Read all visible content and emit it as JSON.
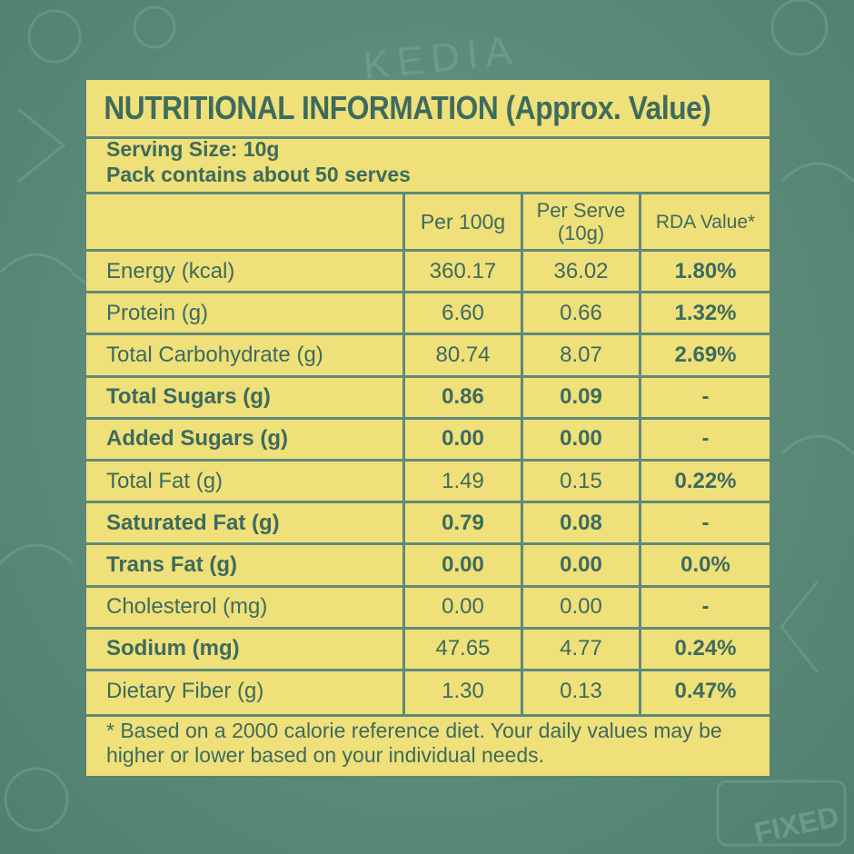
{
  "title": "NUTRITIONAL INFORMATION (Approx. Value)",
  "serving_size": "Serving Size: 10g",
  "pack_contains": "Pack contains about 50 serves",
  "columns": {
    "per_100g": "Per 100g",
    "per_serve": "Per Serve (10g)",
    "rda": "RDA Value*"
  },
  "rows": [
    {
      "nutrient": "Energy (kcal)",
      "per_100g": "360.17",
      "per_serve": "36.02",
      "rda": "1.80%",
      "bold_label": false,
      "bold_values": false
    },
    {
      "nutrient": "Protein (g)",
      "per_100g": "6.60",
      "per_serve": "0.66",
      "rda": "1.32%",
      "bold_label": false,
      "bold_values": false
    },
    {
      "nutrient": "Total Carbohydrate (g)",
      "per_100g": "80.74",
      "per_serve": "8.07",
      "rda": "2.69%",
      "bold_label": false,
      "bold_values": false
    },
    {
      "nutrient": "Total Sugars (g)",
      "per_100g": "0.86",
      "per_serve": "0.09",
      "rda": "-",
      "bold_label": true,
      "bold_values": true
    },
    {
      "nutrient": "Added Sugars (g)",
      "per_100g": "0.00",
      "per_serve": "0.00",
      "rda": "-",
      "bold_label": true,
      "bold_values": true
    },
    {
      "nutrient": "Total Fat (g)",
      "per_100g": "1.49",
      "per_serve": "0.15",
      "rda": "0.22%",
      "bold_label": false,
      "bold_values": false
    },
    {
      "nutrient": "Saturated Fat (g)",
      "per_100g": "0.79",
      "per_serve": "0.08",
      "rda": "-",
      "bold_label": true,
      "bold_values": true
    },
    {
      "nutrient": "Trans Fat (g)",
      "per_100g": "0.00",
      "per_serve": "0.00",
      "rda": "0.0%",
      "bold_label": true,
      "bold_values": true
    },
    {
      "nutrient": "Cholesterol (mg)",
      "per_100g": "0.00",
      "per_serve": "0.00",
      "rda": "-",
      "bold_label": false,
      "bold_values": false
    },
    {
      "nutrient": "Sodium (mg)",
      "per_100g": "47.65",
      "per_serve": "4.77",
      "rda": "0.24%",
      "bold_label": true,
      "bold_values": false
    },
    {
      "nutrient": "Dietary Fiber (g)",
      "per_100g": "1.30",
      "per_serve": "0.13",
      "rda": "0.47%",
      "bold_label": false,
      "bold_values": false
    }
  ],
  "footnote": "* Based on a 2000 calorie reference diet. Your daily values may be higher or lower based on your individual needs.",
  "colors": {
    "background": "#5b8a78",
    "panel": "#efe07a",
    "text": "#3d6b5e",
    "rules": "#5e8a7c"
  },
  "decor": {
    "brand_watermark": "KEDIA",
    "stamp_watermark": "FIXED"
  }
}
